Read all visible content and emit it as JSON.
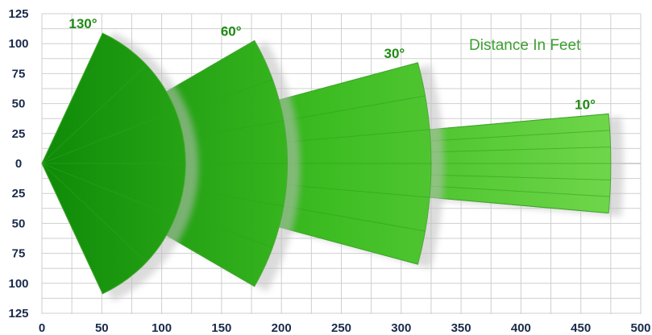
{
  "chart_data": {
    "type": "diagram",
    "title": "Distance In Feet",
    "x_ticks": [
      "0",
      "50",
      "100",
      "150",
      "200",
      "250",
      "300",
      "350",
      "400",
      "450",
      "500"
    ],
    "y_ticks": [
      "125",
      "100",
      "75",
      "50",
      "25",
      "0",
      "25",
      "50",
      "75",
      "100",
      "125"
    ],
    "xlim": [
      0,
      500
    ],
    "ylim": [
      -125,
      125
    ],
    "grid": true,
    "beams": [
      {
        "label": "130°",
        "angle_deg": 130,
        "inner": 0,
        "outer": 120
      },
      {
        "label": "60°",
        "angle_deg": 60,
        "inner": 105,
        "outer": 205
      },
      {
        "label": "30°",
        "angle_deg": 30,
        "inner": 205,
        "outer": 325
      },
      {
        "label": "10°",
        "angle_deg": 10,
        "inner": 325,
        "outer": 475
      }
    ],
    "colors": {
      "beam_light": "#6fd44a",
      "beam_dark": "#1f9a10",
      "edge": "#4ea83a",
      "label": "#1f8a14",
      "title": "#3da132"
    }
  }
}
